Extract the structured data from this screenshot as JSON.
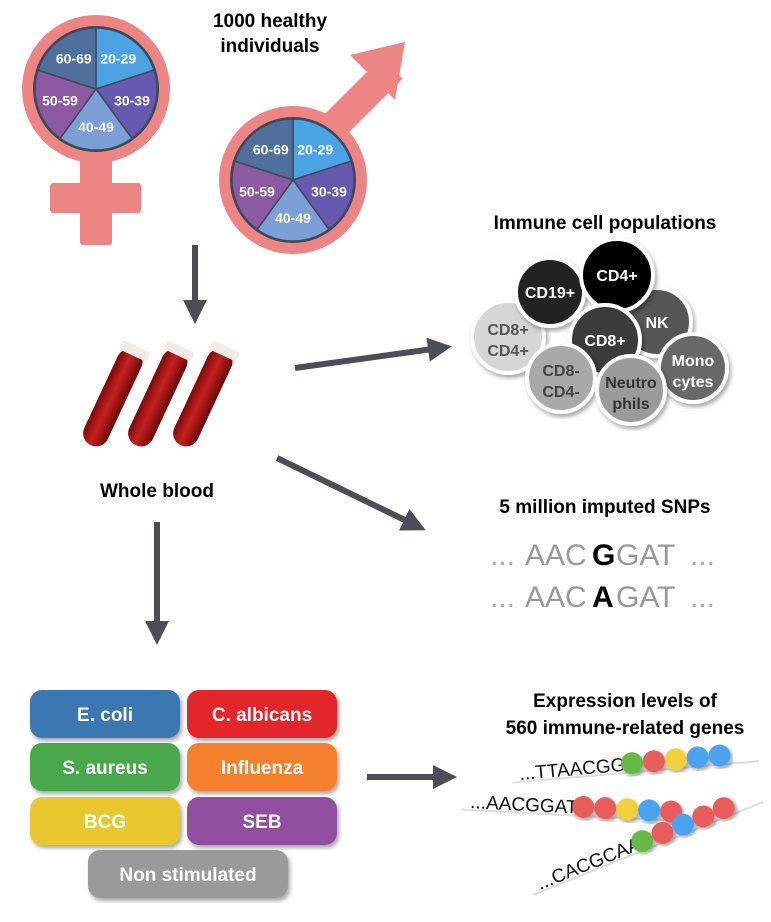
{
  "title": {
    "line1": "1000 healthy individuals",
    "line1a": "1000 healthy",
    "line1b": "individuals"
  },
  "age_groups": [
    "20-29",
    "30-39",
    "40-49",
    "50-59",
    "60-69"
  ],
  "age_colors": [
    "#4ba3e3",
    "#6759b0",
    "#7c9fd6",
    "#8b5aa2",
    "#4f6f9c"
  ],
  "symbol_color": "#ec8583",
  "blood_label": "Whole blood",
  "immune": {
    "title": "Immune cell populations",
    "cells": [
      {
        "label": "CD8+",
        "label2": "CD4+",
        "color": "#d6d6d6",
        "text": "#555"
      },
      {
        "label": "CD19+",
        "label2": "",
        "color": "#222222",
        "text": "#fff"
      },
      {
        "label": "NK",
        "label2": "",
        "color": "#575757",
        "text": "#fff"
      },
      {
        "label": "CD4+",
        "label2": "",
        "color": "#000000",
        "text": "#fff"
      },
      {
        "label": "CD8+",
        "label2": "",
        "color": "#3a3a3a",
        "text": "#fff"
      },
      {
        "label": "CD8-",
        "label2": "CD4-",
        "color": "#a9a9a9",
        "text": "#444"
      },
      {
        "label": "Monocytes",
        "label2": "",
        "label_a": "Mono",
        "label_b": "cytes",
        "color": "#686868",
        "text": "#fff"
      },
      {
        "label": "Neutrophils",
        "label2": "",
        "label_a": "Neutro",
        "label_b": "phils",
        "color": "#9b9b9b",
        "text": "#333"
      }
    ]
  },
  "snps": {
    "title": "5 million imputed SNPs",
    "seq1": {
      "prefix": "...",
      "left": "AAC",
      "allele": "G",
      "right": "GAT",
      "suffix": "..."
    },
    "seq2": {
      "prefix": "...",
      "left": "AAC",
      "allele": "A",
      "right": "GAT",
      "suffix": "..."
    }
  },
  "stimuli": [
    {
      "label": "E. coli",
      "color": "#3b78b2"
    },
    {
      "label": "C. albicans",
      "color": "#e2262b"
    },
    {
      "label": "S. aureus",
      "color": "#4aa84b"
    },
    {
      "label": "Influenza",
      "color": "#f4812f"
    },
    {
      "label": "BCG",
      "color": "#e9c72e"
    },
    {
      "label": "SEB",
      "color": "#9250a1"
    },
    {
      "label": "Non stimulated",
      "color": "#9a9a9a"
    }
  ],
  "expression": {
    "title_line1": "Expression levels of",
    "title_line2": "560 immune-related genes",
    "rows": [
      {
        "seq": "...TTAACGG",
        "dots": [
          "#66b846",
          "#e85b5b",
          "#f3cf3a",
          "#4ba3f0",
          "#4ba3f0"
        ]
      },
      {
        "seq": "...AACGGAT",
        "dots": [
          "#e85b5b",
          "#e85b5b",
          "#f3cf3a",
          "#4ba3f0",
          "#e85b5b"
        ]
      },
      {
        "seq": "...CACGCAA",
        "dots": [
          "#66b846",
          "#e85b5b",
          "#4ba3f0",
          "#e85b5b",
          "#e85b5b"
        ]
      }
    ]
  }
}
